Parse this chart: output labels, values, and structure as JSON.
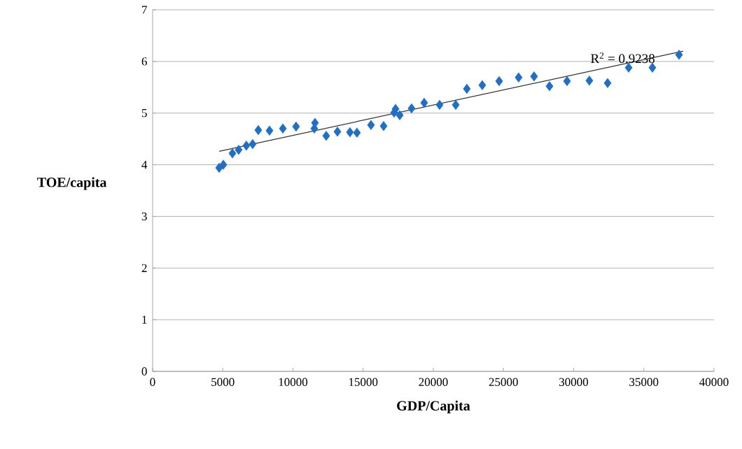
{
  "chart_data": {
    "type": "scatter",
    "xlabel": "GDP/Capita",
    "ylabel": "TOE/capita",
    "annotations": [
      "R$^{2}$ = 0.9238"
    ],
    "xlim": [
      0,
      40000
    ],
    "xticks": [
      0,
      5000,
      10000,
      15000,
      20000,
      25000,
      30000,
      35000,
      40000
    ],
    "ylim": [
      0,
      7
    ],
    "yticks": [
      0,
      1,
      2,
      3,
      4,
      5,
      6,
      7
    ],
    "grid": "y",
    "marker": "diamond",
    "series": [
      {
        "color": "#1f6fc5",
        "x": [
          4740,
          5040,
          5690,
          6130,
          6680,
          7130,
          7530,
          8330,
          9280,
          10220,
          11570,
          11520,
          12370,
          13170,
          14060,
          14560,
          15560,
          16460,
          17310,
          17210,
          17610,
          18450,
          19350,
          20450,
          21600,
          22390,
          23490,
          24690,
          26080,
          27180,
          28280,
          29530,
          31120,
          32420,
          33920,
          35610,
          37510
        ],
        "values": [
          3.94,
          4.0,
          4.22,
          4.29,
          4.37,
          4.4,
          4.67,
          4.66,
          4.7,
          4.74,
          4.81,
          4.7,
          4.56,
          4.64,
          4.63,
          4.62,
          4.77,
          4.75,
          5.08,
          5.01,
          4.96,
          5.09,
          5.2,
          5.16,
          5.16,
          5.47,
          5.54,
          5.62,
          5.69,
          5.71,
          5.52,
          5.62,
          5.63,
          5.58,
          5.88,
          5.88,
          6.13
        ]
      },
      {
        "type": "line",
        "color": "#333333",
        "marker": "none",
        "x": [
          4740,
          37800
        ],
        "values": [
          4.26,
          6.2
        ]
      }
    ]
  }
}
